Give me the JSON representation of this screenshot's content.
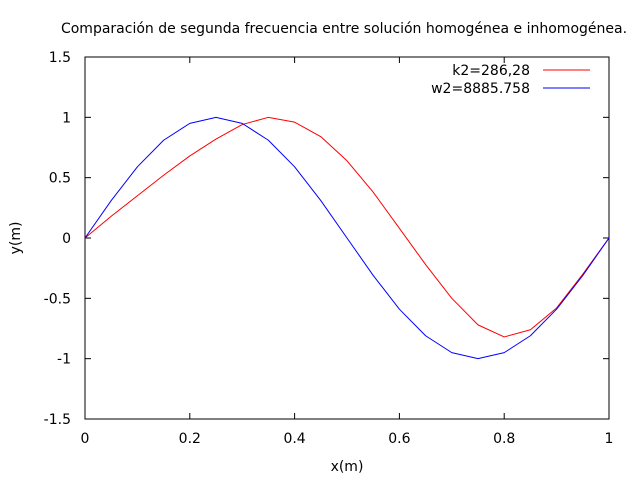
{
  "chart_data": {
    "type": "line",
    "title": "Comparación de segunda frecuencia entre solución homogénea e inhomogénea.",
    "xlabel": "x(m)",
    "ylabel": "y(m)",
    "xlim": [
      0,
      1
    ],
    "ylim": [
      -1.5,
      1.5
    ],
    "x_ticks": [
      0,
      0.2,
      0.4,
      0.6,
      0.8,
      1
    ],
    "x_tick_labels": [
      "0",
      "0.2",
      "0.4",
      "0.6",
      "0.8",
      "1"
    ],
    "y_ticks": [
      -1.5,
      -1,
      -0.5,
      0,
      0.5,
      1,
      1.5
    ],
    "y_tick_labels": [
      "-1.5",
      "-1",
      "-0.5",
      "0",
      "0.5",
      "1",
      "1.5"
    ],
    "grid": false,
    "legend_position": "top-right",
    "series": [
      {
        "name": "k2=286,28",
        "color": "#ff0000",
        "x": [
          0,
          0.05,
          0.1,
          0.15,
          0.2,
          0.25,
          0.3,
          0.35,
          0.4,
          0.45,
          0.5,
          0.55,
          0.6,
          0.65,
          0.7,
          0.75,
          0.8,
          0.85,
          0.9,
          0.95,
          1
        ],
        "y": [
          0,
          0.18,
          0.35,
          0.52,
          0.68,
          0.82,
          0.94,
          1.0,
          0.96,
          0.84,
          0.64,
          0.38,
          0.08,
          -0.22,
          -0.5,
          -0.72,
          -0.82,
          -0.76,
          -0.58,
          -0.3,
          0
        ]
      },
      {
        "name": "w2=8885.758",
        "color": "#0000ff",
        "x": [
          0,
          0.05,
          0.1,
          0.15,
          0.2,
          0.25,
          0.3,
          0.35,
          0.4,
          0.45,
          0.5,
          0.55,
          0.6,
          0.65,
          0.7,
          0.75,
          0.8,
          0.85,
          0.9,
          0.95,
          1
        ],
        "y": [
          0,
          0.31,
          0.59,
          0.81,
          0.95,
          1.0,
          0.95,
          0.81,
          0.59,
          0.31,
          0,
          -0.31,
          -0.59,
          -0.81,
          -0.95,
          -1.0,
          -0.95,
          -0.81,
          -0.59,
          -0.31,
          0
        ]
      }
    ]
  }
}
